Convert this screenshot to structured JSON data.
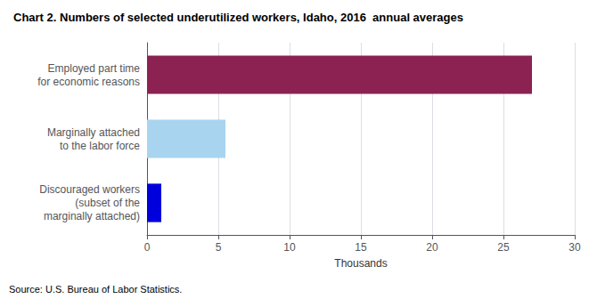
{
  "chart_data": {
    "type": "bar",
    "orientation": "horizontal",
    "title": "Chart 2. Numbers of selected underutilized workers, Idaho, 2016  annual averages",
    "categories": [
      "Discouraged workers\n(subset of the\nmarginally attached)",
      "Marginally attached\nto the labor force",
      "Employed part time\nfor economic reasons"
    ],
    "values": [
      1.0,
      5.5,
      27.0
    ],
    "colors": [
      "#0000dd",
      "#a8d4f0",
      "#8b2252"
    ],
    "xlabel": "Thousands",
    "xlim": [
      0,
      30
    ],
    "xticks": [
      0,
      5,
      10,
      15,
      20,
      25,
      30
    ],
    "grid": true,
    "annotations": [
      "Source: U.S. Bureau of Labor Statistics."
    ]
  }
}
